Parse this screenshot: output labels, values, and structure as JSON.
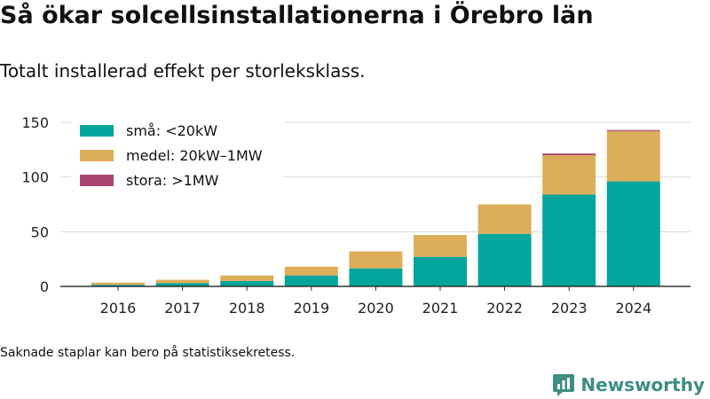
{
  "title": "Så ökar solcellsinstallationerna i Örebro län",
  "subtitle": "Totalt installerad effekt per storleksklass.",
  "note": "Saknade staplar kan bero på statistiksekretess.",
  "brand": {
    "name": "Newsworthy",
    "icon": "newsworthy-logo-icon",
    "color": "#3d8d84"
  },
  "chart_data": {
    "type": "bar",
    "stacked": true,
    "categories": [
      "2016",
      "2017",
      "2018",
      "2019",
      "2020",
      "2021",
      "2022",
      "2023",
      "2024"
    ],
    "series": [
      {
        "name": "små: <20kW",
        "color": "#00a59b",
        "values": [
          1.5,
          3,
          5,
          10,
          16.5,
          27,
          48,
          84,
          96
        ]
      },
      {
        "name": "medel: 20kW–1MW",
        "color": "#dcae5a",
        "values": [
          2,
          3,
          5,
          8,
          15.5,
          20,
          27,
          36,
          46
        ]
      },
      {
        "name": "stora: >1MW",
        "color": "#a8456e",
        "values": [
          0,
          0,
          0,
          0,
          0,
          0,
          0,
          1.5,
          1
        ]
      }
    ],
    "ylim": [
      0,
      150
    ],
    "yticks": [
      0,
      50,
      100,
      150
    ],
    "grid": true,
    "legend_position": "top-left",
    "xlabel": "",
    "ylabel": ""
  }
}
